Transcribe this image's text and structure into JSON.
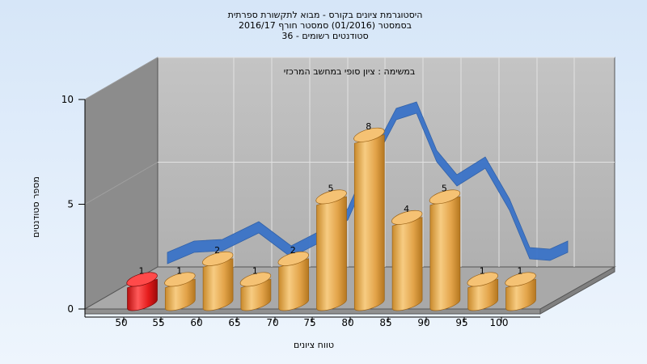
{
  "chart_data": {
    "type": "bar",
    "title_lines": [
      "היסטוגרמת ציונים בקורס - מבוא לתקשורת ספרתית",
      "בסמסטר  (01/2016)  סמסטר חורף 2016/17",
      "סטודנטים רשומים - 36"
    ],
    "subtitle": "במשימה : ציון סופי במחשב המרכזי",
    "xlabel": "טווח ציונים",
    "ylabel": "מספר סטודנטים",
    "x_ticks": [
      "50",
      "55",
      "60",
      "65",
      "70",
      "75",
      "80",
      "85",
      "90",
      "95",
      "100"
    ],
    "y_ticks": [
      0,
      5,
      10
    ],
    "ylim": [
      0,
      10
    ],
    "categories": [
      "50",
      "55",
      "60",
      "65",
      "70",
      "75",
      "80",
      "85",
      "90",
      "95",
      "100"
    ],
    "values": [
      1,
      1,
      2,
      1,
      2,
      5,
      8,
      4,
      5,
      1,
      1
    ],
    "bar_colors": [
      "#e41b1b",
      "#e8a84a",
      "#e8a84a",
      "#e8a84a",
      "#e8a84a",
      "#e8a84a",
      "#e8a84a",
      "#e8a84a",
      "#e8a84a",
      "#e8a84a",
      "#e8a84a"
    ],
    "curve_color": "#3a73c8",
    "grid": true,
    "style": "3d-cylinder"
  }
}
